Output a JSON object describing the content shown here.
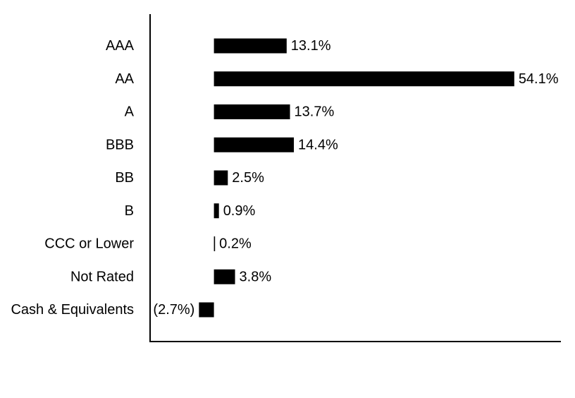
{
  "chart_data": {
    "type": "bar",
    "orientation": "horizontal",
    "categories": [
      "AAA",
      "AA",
      "A",
      "BBB",
      "BB",
      "B",
      "CCC or Lower",
      "Not Rated",
      "Cash & Equivalents"
    ],
    "values": [
      13.1,
      54.1,
      13.7,
      14.4,
      2.5,
      0.9,
      0.2,
      3.8,
      -2.7
    ],
    "value_labels": [
      "13.1%",
      "54.1%",
      "13.7%",
      "14.4%",
      "2.5%",
      "0.9%",
      "0.2%",
      "3.8%",
      "(2.7%)"
    ],
    "unit": "%",
    "title": "",
    "xlabel": "",
    "ylabel": "",
    "xlim": [
      -11.5,
      62.5
    ],
    "grid": false,
    "legend": "none",
    "bar_color": "#000000",
    "axis_color": "#000000"
  }
}
